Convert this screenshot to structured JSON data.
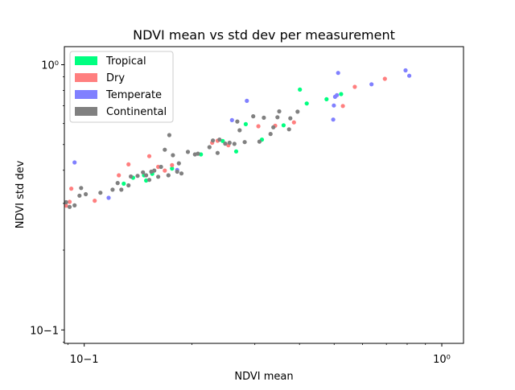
{
  "chart_data": {
    "type": "scatter",
    "title": "NDVI mean vs std dev per measurement",
    "xlabel": "NDVI mean",
    "ylabel": "NDVI std dev",
    "xscale": "log",
    "yscale": "log",
    "xlim": [
      0.088,
      1.15
    ],
    "ylim": [
      0.089,
      1.17
    ],
    "grid": false,
    "legend_position": "top-left",
    "x_ticks": [
      {
        "value": 0.1,
        "label": "10−1"
      },
      {
        "value": 1,
        "label": "10⁰"
      }
    ],
    "y_ticks": [
      {
        "value": 0.1,
        "label": "10−1"
      },
      {
        "value": 1,
        "label": "10⁰"
      }
    ],
    "series": [
      {
        "name": "Tropical",
        "color": "#00ff80",
        "points": [
          [
            0.129,
            0.356
          ],
          [
            0.137,
            0.375
          ],
          [
            0.147,
            0.383
          ],
          [
            0.149,
            0.366
          ],
          [
            0.155,
            0.388
          ],
          [
            0.176,
            0.406
          ],
          [
            0.212,
            0.459
          ],
          [
            0.244,
            0.516
          ],
          [
            0.266,
            0.471
          ],
          [
            0.283,
            0.597
          ],
          [
            0.314,
            0.522
          ],
          [
            0.361,
            0.591
          ],
          [
            0.401,
            0.806
          ],
          [
            0.419,
            0.714
          ],
          [
            0.476,
            0.741
          ],
          [
            0.523,
            0.775
          ]
        ]
      },
      {
        "name": "Dry",
        "color": "#ff7f7f",
        "points": [
          [
            0.089,
            0.294
          ],
          [
            0.091,
            0.304
          ],
          [
            0.092,
            0.341
          ],
          [
            0.107,
            0.307
          ],
          [
            0.125,
            0.383
          ],
          [
            0.133,
            0.421
          ],
          [
            0.152,
            0.452
          ],
          [
            0.161,
            0.412
          ],
          [
            0.168,
            0.399
          ],
          [
            0.176,
            0.418
          ],
          [
            0.228,
            0.508
          ],
          [
            0.236,
            0.517
          ],
          [
            0.253,
            0.497
          ],
          [
            0.307,
            0.586
          ],
          [
            0.342,
            0.589
          ],
          [
            0.386,
            0.606
          ],
          [
            0.529,
            0.699
          ],
          [
            0.571,
            0.825
          ],
          [
            0.693,
            0.885
          ]
        ]
      },
      {
        "name": "Temperate",
        "color": "#8080ff",
        "points": [
          [
            0.094,
            0.428
          ],
          [
            0.117,
            0.315
          ],
          [
            0.182,
            0.401
          ],
          [
            0.259,
            0.618
          ],
          [
            0.285,
            0.731
          ],
          [
            0.497,
            0.621
          ],
          [
            0.499,
            0.702
          ],
          [
            0.503,
            0.757
          ],
          [
            0.509,
            0.768
          ],
          [
            0.513,
            0.931
          ],
          [
            0.636,
            0.844
          ],
          [
            0.792,
            0.952
          ],
          [
            0.811,
            0.909
          ]
        ]
      },
      {
        "name": "Continental",
        "color": "#808080",
        "points": [
          [
            0.089,
            0.303
          ],
          [
            0.091,
            0.291
          ],
          [
            0.094,
            0.295
          ],
          [
            0.097,
            0.321
          ],
          [
            0.098,
            0.343
          ],
          [
            0.101,
            0.325
          ],
          [
            0.111,
            0.329
          ],
          [
            0.12,
            0.338
          ],
          [
            0.124,
            0.358
          ],
          [
            0.127,
            0.338
          ],
          [
            0.133,
            0.351
          ],
          [
            0.135,
            0.379
          ],
          [
            0.141,
            0.381
          ],
          [
            0.146,
            0.393
          ],
          [
            0.149,
            0.383
          ],
          [
            0.152,
            0.368
          ],
          [
            0.154,
            0.395
          ],
          [
            0.157,
            0.399
          ],
          [
            0.161,
            0.378
          ],
          [
            0.164,
            0.412
          ],
          [
            0.168,
            0.478
          ],
          [
            0.172,
            0.383
          ],
          [
            0.177,
            0.456
          ],
          [
            0.182,
            0.395
          ],
          [
            0.184,
            0.425
          ],
          [
            0.187,
            0.389
          ],
          [
            0.195,
            0.469
          ],
          [
            0.204,
            0.459
          ],
          [
            0.208,
            0.462
          ],
          [
            0.173,
            0.543
          ],
          [
            0.224,
            0.489
          ],
          [
            0.229,
            0.518
          ],
          [
            0.236,
            0.465
          ],
          [
            0.239,
            0.522
          ],
          [
            0.248,
            0.504
          ],
          [
            0.255,
            0.508
          ],
          [
            0.263,
            0.503
          ],
          [
            0.268,
            0.611
          ],
          [
            0.272,
            0.566
          ],
          [
            0.281,
            0.511
          ],
          [
            0.297,
            0.639
          ],
          [
            0.309,
            0.513
          ],
          [
            0.318,
            0.631
          ],
          [
            0.332,
            0.548
          ],
          [
            0.338,
            0.581
          ],
          [
            0.347,
            0.634
          ],
          [
            0.351,
            0.667
          ],
          [
            0.374,
            0.571
          ],
          [
            0.377,
            0.628
          ],
          [
            0.395,
            0.665
          ]
        ]
      }
    ]
  }
}
